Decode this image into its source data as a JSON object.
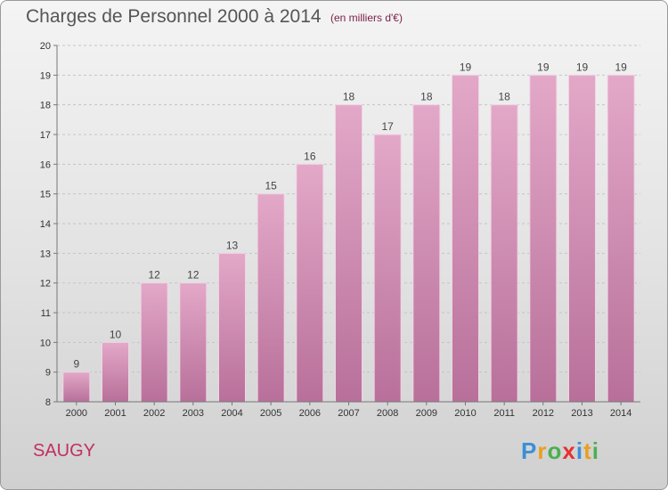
{
  "title": "Charges de Personnel 2000 à 2014",
  "subtitle": "(en milliers d'€)",
  "place": "SAUGY",
  "logo": {
    "letters": [
      "P",
      "r",
      "o",
      "x",
      "i",
      "t",
      "i"
    ],
    "colors": [
      "#3a8fd8",
      "#e8a020",
      "#4caf50",
      "#e83030",
      "#3a8fd8",
      "#e8a020",
      "#4caf50"
    ]
  },
  "chart_data": {
    "type": "bar",
    "categories": [
      "2000",
      "2001",
      "2002",
      "2003",
      "2004",
      "2005",
      "2006",
      "2007",
      "2008",
      "2009",
      "2010",
      "2011",
      "2012",
      "2013",
      "2014"
    ],
    "values": [
      9,
      10,
      12,
      12,
      13,
      15,
      16,
      18,
      17,
      18,
      19,
      18,
      19,
      19,
      19
    ],
    "title": "Charges de Personnel 2000 à 2014",
    "xlabel": "",
    "ylabel": "",
    "ylim": [
      8,
      20
    ],
    "yticks": [
      8,
      9,
      10,
      11,
      12,
      13,
      14,
      15,
      16,
      17,
      18,
      19,
      20
    ],
    "grid": true,
    "bar_color": "#d38db2"
  }
}
